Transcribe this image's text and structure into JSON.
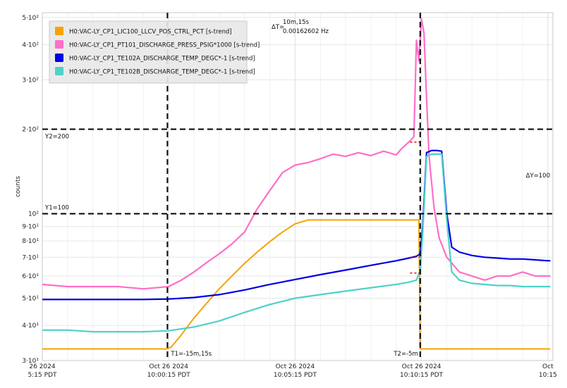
{
  "chart_data": {
    "type": "line",
    "title": "",
    "ylabel": "counts",
    "yscale": "log",
    "ylim": [
      30,
      520
    ],
    "x_ticks": [
      {
        "t": 0,
        "date": "26 2024",
        "time": "5:15 PDT"
      },
      {
        "t": 5,
        "date": "Oct 26 2024",
        "time": "10:00:15 PDT"
      },
      {
        "t": 10,
        "date": "Oct 26 2024",
        "time": "10:05:15 PDT"
      },
      {
        "t": 15,
        "date": "Oct 26 2024",
        "time": "10:10:15 PDT"
      },
      {
        "t": 20,
        "date": "Oct",
        "time": "10:15"
      }
    ],
    "y_ticks": [
      {
        "v": 30,
        "label": "3·10¹"
      },
      {
        "v": 40,
        "label": "4·10¹"
      },
      {
        "v": 50,
        "label": "5·10¹"
      },
      {
        "v": 60,
        "label": "6·10¹"
      },
      {
        "v": 70,
        "label": "7·10¹"
      },
      {
        "v": 80,
        "label": "8·10¹"
      },
      {
        "v": 90,
        "label": "9·10¹"
      },
      {
        "v": 100,
        "label": "10²"
      },
      {
        "v": 200,
        "label": "2·10²"
      },
      {
        "v": 300,
        "label": "3·10²"
      },
      {
        "v": 400,
        "label": "4·10²"
      },
      {
        "v": 500,
        "label": "5·10²"
      }
    ],
    "series": [
      {
        "name": "H0:VAC-LY_CP1_LIC100_LLCV_POS_CTRL_PCT [s-trend]",
        "color": "#f5a300",
        "x": [
          0,
          4.9,
          5.1,
          5.5,
          6,
          6.5,
          7,
          7.5,
          8,
          8.5,
          9,
          9.5,
          10,
          10.5,
          11,
          11.5,
          12,
          12.5,
          13,
          13.5,
          14,
          14.5,
          14.9,
          14.95,
          15.05,
          20.1
        ],
        "y": [
          33,
          33,
          33.5,
          37,
          42.5,
          48,
          54,
          60,
          66.5,
          73,
          79.5,
          86,
          92,
          95,
          95,
          95,
          95,
          95,
          95,
          95,
          95,
          95,
          95,
          33,
          33,
          33
        ]
      },
      {
        "name": "H0:VAC-LY_CP1_PT101_DISCHARGE_PRESS_PSIG*1000 [s-trend]",
        "color": "#ff6ec7",
        "x": [
          0,
          1,
          2,
          3,
          4,
          5,
          5.5,
          6,
          6.5,
          7,
          7.5,
          8,
          8.5,
          9,
          9.5,
          10,
          10.5,
          11,
          11.5,
          12,
          12.5,
          13,
          13.5,
          14,
          14.2,
          14.5,
          14.7,
          14.8,
          14.9,
          15,
          15.1,
          15.2,
          15.3,
          15.5,
          15.7,
          16,
          16.5,
          17,
          17.5,
          18,
          18.5,
          19,
          19.5,
          20,
          20.1
        ],
        "y": [
          56,
          55,
          55,
          55,
          54,
          55,
          58,
          62,
          67,
          72,
          78,
          86,
          104,
          121,
          140,
          149,
          152,
          157,
          163,
          160,
          165,
          161,
          167,
          162,
          170,
          180,
          188,
          415,
          350,
          495,
          440,
          260,
          160,
          105,
          82,
          70,
          62,
          60,
          58,
          60,
          60,
          62,
          60,
          60,
          60
        ]
      },
      {
        "name": "H0:VAC-LY_CP1_TE102A_DISCHARGE_TEMP_DEGC*-1 [s-trend]",
        "color": "#0000e6",
        "x": [
          0,
          1,
          2,
          3,
          4,
          5,
          6,
          7,
          8,
          9,
          10,
          11,
          12,
          13,
          14,
          14.5,
          14.8,
          14.95,
          15.05,
          15.2,
          15.4,
          15.6,
          15.8,
          16,
          16.2,
          16.5,
          17,
          17.5,
          18,
          18.5,
          19,
          19.5,
          20,
          20.1
        ],
        "y": [
          49.5,
          49.5,
          49.5,
          49.5,
          49.5,
          49.7,
          50.3,
          51.5,
          53.5,
          56,
          58.3,
          60.7,
          63,
          65.5,
          68,
          69.5,
          70.5,
          72,
          90,
          165,
          168,
          168,
          167,
          100,
          76,
          73,
          71,
          70,
          69.5,
          69,
          69,
          68.5,
          68,
          68
        ]
      },
      {
        "name": "H0:VAC-LY_CP1_TE102B_DISCHARGE_TEMP_DEGC*-1 [s-trend]",
        "color": "#4fd1c9",
        "x": [
          0,
          1,
          2,
          3,
          4,
          5,
          6,
          7,
          8,
          9,
          10,
          11,
          12,
          13,
          14,
          14.5,
          14.8,
          14.95,
          15.05,
          15.2,
          15.4,
          15.6,
          15.8,
          16,
          16.2,
          16.5,
          17,
          17.5,
          18,
          18.5,
          19,
          19.5,
          20,
          20.1
        ],
        "y": [
          38.5,
          38.5,
          38,
          38,
          38,
          38.3,
          39.5,
          41.5,
          44.5,
          47.5,
          50,
          51.5,
          53,
          54.5,
          56,
          57,
          58,
          63,
          85,
          160,
          163,
          163,
          163,
          95,
          62,
          58,
          56.5,
          56,
          55.5,
          55.5,
          55,
          55,
          55,
          55
        ]
      }
    ],
    "red_gaps": [
      {
        "x0": 14.55,
        "x1": 14.95,
        "y": 180
      },
      {
        "x0": 14.55,
        "x1": 14.95,
        "y": 70
      },
      {
        "x0": 14.55,
        "x1": 14.95,
        "y": 61.5
      }
    ],
    "cursors": {
      "T1": {
        "t": 4.95,
        "label": "T1=-15m,15s"
      },
      "T2": {
        "t": 14.95,
        "label": "T2=-5m"
      },
      "Y1": {
        "v": 100,
        "label": "Y1=100"
      },
      "Y2": {
        "v": 200,
        "label": "Y2=200"
      },
      "delta_t": {
        "symbol": "ΔT=",
        "value": "10m,15s",
        "freq": "0.00162602 Hz"
      },
      "delta_y": "ΔY=100"
    },
    "legend_position": "top-left"
  }
}
